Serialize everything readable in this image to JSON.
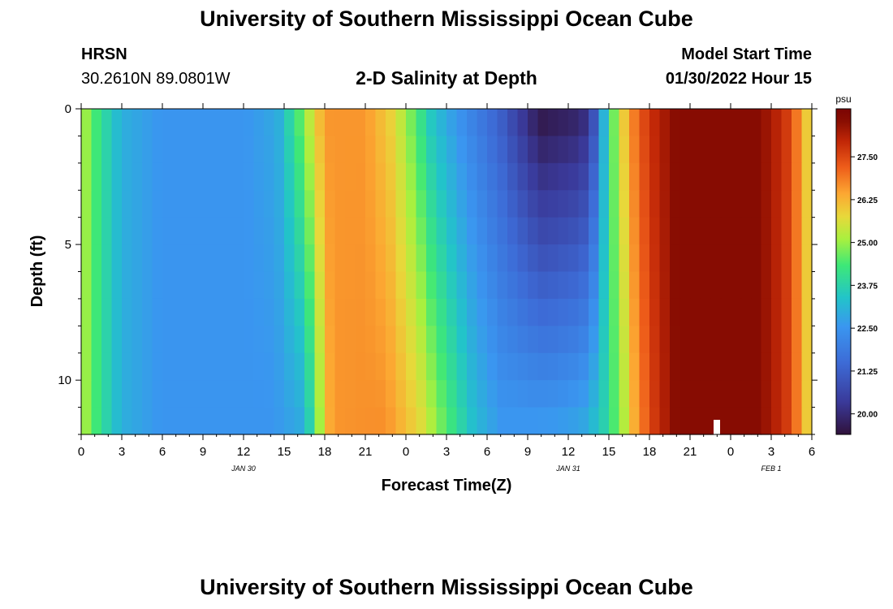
{
  "header": {
    "title": "University of Southern Mississippi Ocean Cube",
    "station": "HRSN",
    "coordinates": "30.2610N  89.0801W",
    "subtitle": "2-D Salinity at Depth",
    "start_label": "Model Start Time",
    "start_value": "01/30/2022 Hour 15"
  },
  "footer": {
    "title": "University of Southern Mississippi Ocean Cube"
  },
  "colorbar": {
    "unit": "psu",
    "ticks": [
      "27.50",
      "26.25",
      "25.00",
      "23.75",
      "22.50",
      "21.25",
      "20.00"
    ],
    "tick_values": [
      27.5,
      26.25,
      25.0,
      23.75,
      22.5,
      21.25,
      20.0
    ],
    "range": [
      19.4,
      28.9
    ]
  },
  "chart_data": {
    "type": "heatmap",
    "title": "2-D Salinity at Depth",
    "xlabel": "Forecast Time(Z)",
    "ylabel": "Depth (ft)",
    "x_ticks": [
      "0",
      "3",
      "6",
      "9",
      "12",
      "15",
      "18",
      "21",
      "0",
      "3",
      "6",
      "9",
      "12",
      "15",
      "18",
      "21",
      "0",
      "3",
      "6"
    ],
    "x_range_hours": [
      0,
      54
    ],
    "date_labels": [
      {
        "text": "JAN 30",
        "hour": 12
      },
      {
        "text": "JAN 31",
        "hour": 36
      },
      {
        "text": "FEB 1",
        "hour": 51
      }
    ],
    "y_ticks": [
      "0",
      "5",
      "10"
    ],
    "y_tick_values": [
      0,
      5,
      10
    ],
    "y_range_ft": [
      0,
      12
    ],
    "reversed_y": true,
    "keyframes_surface": [
      [
        0,
        25.3
      ],
      [
        1.5,
        24.0
      ],
      [
        3,
        23.0
      ],
      [
        6,
        22.5
      ],
      [
        12,
        22.5
      ],
      [
        14.5,
        22.9
      ],
      [
        16,
        24.4
      ],
      [
        17,
        25.5
      ],
      [
        18,
        26.6
      ],
      [
        21,
        26.6
      ],
      [
        23,
        25.8
      ],
      [
        24.5,
        24.6
      ],
      [
        26,
        23.3
      ],
      [
        28,
        22.4
      ],
      [
        31,
        21.2
      ],
      [
        33,
        20.0
      ],
      [
        34,
        19.5
      ],
      [
        37,
        19.8
      ],
      [
        38,
        21.0
      ],
      [
        38.6,
        23.0
      ],
      [
        39.5,
        25.0
      ],
      [
        40.5,
        26.6
      ],
      [
        42,
        27.8
      ],
      [
        44,
        28.6
      ],
      [
        50,
        28.6
      ],
      [
        52,
        27.8
      ],
      [
        53.3,
        26.5
      ],
      [
        54,
        25.3
      ]
    ],
    "keyframes_bottom": [
      [
        0,
        25.3
      ],
      [
        1.5,
        24.0
      ],
      [
        3,
        23.0
      ],
      [
        6,
        22.5
      ],
      [
        14,
        22.5
      ],
      [
        16.5,
        22.9
      ],
      [
        17.5,
        24.8
      ],
      [
        18.5,
        26.6
      ],
      [
        22.5,
        26.7
      ],
      [
        25,
        25.8
      ],
      [
        27,
        24.5
      ],
      [
        29,
        23.3
      ],
      [
        31,
        22.6
      ],
      [
        35,
        22.7
      ],
      [
        37,
        22.9
      ],
      [
        38.5,
        23.6
      ],
      [
        40,
        25.0
      ],
      [
        41,
        26.5
      ],
      [
        42.5,
        27.8
      ],
      [
        44,
        28.6
      ],
      [
        50,
        28.6
      ],
      [
        52,
        27.8
      ],
      [
        53.3,
        26.5
      ],
      [
        54,
        25.3
      ]
    ]
  }
}
